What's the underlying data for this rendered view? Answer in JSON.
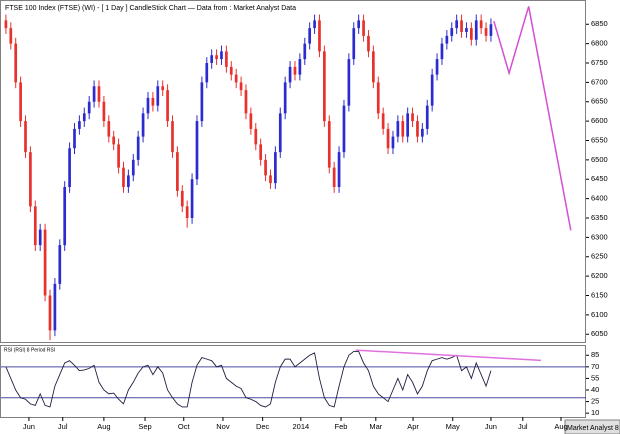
{
  "chart_data": [
    {
      "type": "candlestick",
      "title": "FTSE 100 Index (FTSE) (WI) -  [ 1 Day ] CandleStick Chart — Data from : Market Analyst Data",
      "open": [
        6860,
        6840,
        6800,
        6700,
        6600,
        6520,
        6380,
        6280,
        6320,
        6150,
        6060,
        6180,
        6280,
        6430,
        6530,
        6580,
        6600,
        6620,
        6650,
        6690,
        6650,
        6600,
        6560,
        6540,
        6480,
        6430,
        6460,
        6500,
        6560,
        6620,
        6660,
        6640,
        6690,
        6680,
        6600,
        6520,
        6420,
        6380,
        6350,
        6450,
        6600,
        6700,
        6750,
        6770,
        6760,
        6780,
        6740,
        6720,
        6700,
        6680,
        6620,
        6580,
        6540,
        6500,
        6460,
        6440,
        6520,
        6620,
        6700,
        6740,
        6720,
        6760,
        6800,
        6840,
        6860,
        6780,
        6600,
        6480,
        6430,
        6520,
        6640,
        6760,
        6840,
        6860,
        6820,
        6780,
        6700,
        6620,
        6580,
        6530,
        6560,
        6600,
        6560,
        6620,
        6600,
        6560,
        6580,
        6640,
        6720,
        6760,
        6800,
        6820,
        6840,
        6860,
        6830,
        6840,
        6810,
        6860,
        6840,
        6820
      ],
      "high": [
        6875,
        6855,
        6815,
        6715,
        6615,
        6535,
        6395,
        6335,
        6335,
        6165,
        6195,
        6295,
        6445,
        6545,
        6595,
        6615,
        6635,
        6665,
        6705,
        6705,
        6665,
        6615,
        6575,
        6555,
        6495,
        6475,
        6515,
        6575,
        6635,
        6675,
        6675,
        6705,
        6705,
        6695,
        6615,
        6535,
        6435,
        6395,
        6465,
        6615,
        6715,
        6765,
        6785,
        6785,
        6795,
        6795,
        6755,
        6735,
        6715,
        6695,
        6635,
        6595,
        6555,
        6515,
        6475,
        6535,
        6635,
        6715,
        6755,
        6755,
        6775,
        6815,
        6855,
        6875,
        6875,
        6795,
        6615,
        6495,
        6535,
        6655,
        6775,
        6855,
        6875,
        6875,
        6835,
        6795,
        6715,
        6635,
        6595,
        6575,
        6615,
        6615,
        6635,
        6635,
        6615,
        6595,
        6655,
        6735,
        6775,
        6815,
        6835,
        6855,
        6875,
        6875,
        6855,
        6855,
        6875,
        6875,
        6855,
        6865
      ],
      "low": [
        6825,
        6785,
        6685,
        6585,
        6505,
        6365,
        6265,
        6265,
        6135,
        6035,
        6045,
        6165,
        6265,
        6415,
        6515,
        6565,
        6585,
        6605,
        6635,
        6635,
        6585,
        6545,
        6525,
        6465,
        6415,
        6415,
        6445,
        6485,
        6545,
        6605,
        6625,
        6625,
        6665,
        6585,
        6505,
        6405,
        6365,
        6325,
        6335,
        6435,
        6585,
        6685,
        6735,
        6745,
        6745,
        6725,
        6705,
        6685,
        6665,
        6605,
        6565,
        6525,
        6485,
        6445,
        6425,
        6425,
        6505,
        6605,
        6685,
        6705,
        6705,
        6745,
        6785,
        6825,
        6765,
        6585,
        6465,
        6415,
        6415,
        6505,
        6625,
        6745,
        6825,
        6805,
        6765,
        6685,
        6605,
        6565,
        6515,
        6515,
        6545,
        6545,
        6545,
        6585,
        6545,
        6545,
        6565,
        6625,
        6705,
        6745,
        6785,
        6805,
        6825,
        6815,
        6815,
        6795,
        6795,
        6825,
        6805,
        6805
      ],
      "close": [
        6840,
        6800,
        6700,
        6600,
        6520,
        6380,
        6280,
        6320,
        6150,
        6060,
        6180,
        6280,
        6430,
        6530,
        6580,
        6600,
        6620,
        6650,
        6690,
        6650,
        6600,
        6560,
        6540,
        6480,
        6430,
        6460,
        6500,
        6560,
        6620,
        6660,
        6640,
        6690,
        6680,
        6600,
        6520,
        6420,
        6380,
        6350,
        6450,
        6600,
        6700,
        6750,
        6770,
        6760,
        6780,
        6740,
        6720,
        6700,
        6680,
        6620,
        6580,
        6540,
        6500,
        6460,
        6440,
        6520,
        6620,
        6700,
        6740,
        6720,
        6760,
        6800,
        6840,
        6860,
        6780,
        6600,
        6480,
        6430,
        6520,
        6640,
        6760,
        6840,
        6860,
        6820,
        6780,
        6700,
        6620,
        6580,
        6530,
        6560,
        6600,
        6560,
        6620,
        6600,
        6560,
        6580,
        6640,
        6720,
        6760,
        6800,
        6820,
        6840,
        6860,
        6830,
        6840,
        6810,
        6860,
        6840,
        6820,
        6850
      ],
      "up_color": "#2b2bd0",
      "down_color": "#e8302c",
      "xlim": [
        -1,
        118.4
      ],
      "xticks": [
        {
          "value": 4.7,
          "label": "Jun"
        },
        {
          "value": 11.6,
          "label": "Jul"
        },
        {
          "value": 20,
          "label": "Aug"
        },
        {
          "value": 28.4,
          "label": "Sep"
        },
        {
          "value": 36.3,
          "label": "Oct"
        },
        {
          "value": 44.3,
          "label": "Nov"
        },
        {
          "value": 52.4,
          "label": "Dec"
        },
        {
          "value": 60.2,
          "label": "2014"
        },
        {
          "value": 68.4,
          "label": "Feb"
        },
        {
          "value": 75.5,
          "label": "Mar"
        },
        {
          "value": 83.1,
          "label": "Apr"
        },
        {
          "value": 91.2,
          "label": "May"
        },
        {
          "value": 99,
          "label": "Jun"
        },
        {
          "value": 105.5,
          "label": "Jul"
        },
        {
          "value": 113.3,
          "label": "Aug"
        }
      ],
      "ylim": [
        6030,
        6910
      ],
      "yticks": [
        6050,
        6100,
        6150,
        6200,
        6250,
        6300,
        6350,
        6400,
        6450,
        6500,
        6550,
        6600,
        6650,
        6700,
        6750,
        6800,
        6850
      ],
      "projection": {
        "x": [
          99.6,
          102.7,
          106.7,
          115.3
        ],
        "values": [
          6858,
          6724,
          6896,
          6318
        ],
        "color": "#d34fd3"
      }
    },
    {
      "type": "line",
      "title": "RSI (RSI) 8 Period RSI",
      "values": [
        70,
        55,
        40,
        30,
        28,
        22,
        20,
        35,
        20,
        18,
        45,
        60,
        75,
        78,
        72,
        65,
        66,
        68,
        72,
        50,
        40,
        35,
        36,
        28,
        22,
        40,
        50,
        62,
        70,
        72,
        60,
        70,
        62,
        40,
        30,
        22,
        18,
        18,
        50,
        72,
        82,
        80,
        78,
        70,
        72,
        55,
        50,
        45,
        42,
        30,
        28,
        25,
        20,
        18,
        22,
        50,
        70,
        80,
        80,
        70,
        75,
        80,
        85,
        88,
        55,
        30,
        20,
        18,
        45,
        70,
        85,
        90,
        90,
        75,
        65,
        45,
        35,
        30,
        25,
        40,
        55,
        40,
        60,
        50,
        35,
        45,
        65,
        78,
        80,
        82,
        80,
        82,
        85,
        65,
        70,
        55,
        75,
        60,
        45,
        65
      ],
      "color": "#202040",
      "xlim": [
        -1,
        118.4
      ],
      "ylim": [
        5,
        97
      ],
      "yticks": [
        85,
        70,
        55,
        40,
        25,
        10
      ],
      "levels": [
        70,
        30
      ],
      "level_color": "#4a4aa0",
      "divergence": {
        "x": [
          71.4,
          109.2
        ],
        "values": [
          91.6,
          78.4
        ],
        "color": "#e070e0"
      }
    }
  ],
  "footer": "Market Analyst 8"
}
